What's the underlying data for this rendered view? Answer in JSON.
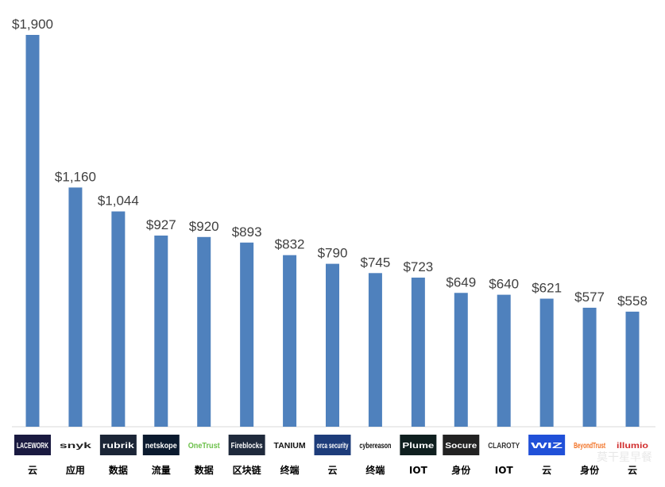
{
  "chart_data": {
    "type": "bar",
    "categories": [
      "LACEWORK",
      "snyk",
      "rubrik",
      "netskope",
      "OneTrust",
      "Fireblocks",
      "TANIUM",
      "orca security",
      "cybereason",
      "Plume",
      "Socure",
      "CLAROTY",
      "WIZ",
      "BeyondTrust",
      "illumio"
    ],
    "sectors": [
      "云",
      "应用",
      "数据",
      "流量",
      "数据",
      "区块链",
      "终端",
      "云",
      "终端",
      "IOT",
      "身份",
      "IOT",
      "云",
      "身份",
      "云"
    ],
    "values": [
      1900,
      1160,
      1044,
      927,
      920,
      893,
      832,
      790,
      745,
      723,
      649,
      640,
      621,
      577,
      558
    ],
    "value_labels": [
      "$1,900",
      "$1,160",
      "$1,044",
      "$927",
      "$920",
      "$893",
      "$832",
      "$790",
      "$745",
      "$723",
      "$649",
      "$640",
      "$621",
      "$577",
      "$558"
    ],
    "title": "",
    "xlabel": "",
    "ylabel": "",
    "ylim": [
      0,
      1900
    ],
    "grid": false,
    "bar_color": "#4F81BD"
  },
  "logos": [
    {
      "text": "LACEWORK",
      "bg": "#1a1a40",
      "fg": "#ffffff"
    },
    {
      "text": "snyk",
      "bg": "#ffffff",
      "fg": "#222222"
    },
    {
      "text": "rubrik",
      "bg": "#1b2536",
      "fg": "#ffffff"
    },
    {
      "text": "netskope",
      "bg": "#0b1a2e",
      "fg": "#ffffff"
    },
    {
      "text": "OneTrust",
      "bg": "#ffffff",
      "fg": "#6cc04a"
    },
    {
      "text": "Fireblocks",
      "bg": "#1f2a3c",
      "fg": "#ffffff"
    },
    {
      "text": "TANIUM",
      "bg": "#ffffff",
      "fg": "#111111"
    },
    {
      "text": "orca security",
      "bg": "#1d3c7a",
      "fg": "#ffffff"
    },
    {
      "text": "cybereason",
      "bg": "#ffffff",
      "fg": "#111111"
    },
    {
      "text": "Plume",
      "bg": "#0f1f1f",
      "fg": "#ffffff"
    },
    {
      "text": "Socure",
      "bg": "#222222",
      "fg": "#ffffff"
    },
    {
      "text": "CLAROTY",
      "bg": "#ffffff",
      "fg": "#333333"
    },
    {
      "text": "WIZ",
      "bg": "#2050d8",
      "fg": "#ffffff"
    },
    {
      "text": "BeyondTrust",
      "bg": "#ffffff",
      "fg": "#f27022"
    },
    {
      "text": "illumio",
      "bg": "#ffffff",
      "fg": "#d12d2d"
    }
  ],
  "watermark": "莫干星早餐"
}
